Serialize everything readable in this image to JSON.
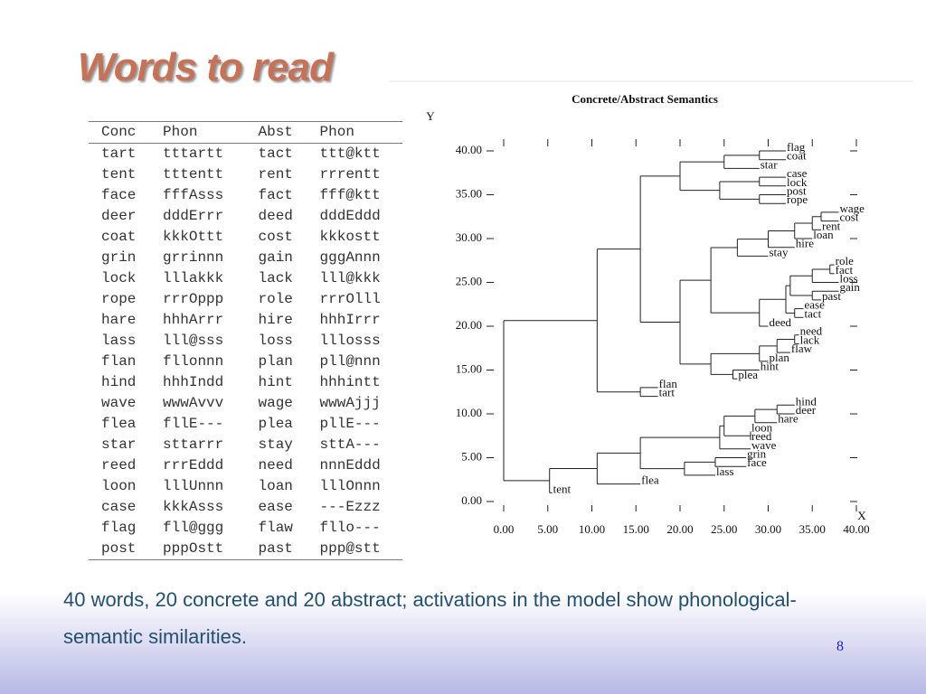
{
  "slide": {
    "title": "Words to read",
    "table": {
      "header": [
        "Conc",
        "Phon",
        "Abst",
        "Phon"
      ],
      "rows": [
        [
          "tart",
          "tttartt",
          "tact",
          "ttt@ktt"
        ],
        [
          "tent",
          "tttentt",
          "rent",
          "rrrentt"
        ],
        [
          "face",
          "fffAsss",
          "fact",
          "fff@ktt"
        ],
        [
          "deer",
          "dddErrr",
          "deed",
          "dddEddd"
        ],
        [
          "coat",
          "kkkOttt",
          "cost",
          "kkkostt"
        ],
        [
          "grin",
          "grrinnn",
          "gain",
          "gggAnnn"
        ],
        [
          "lock",
          "lllakkk",
          "lack",
          "lll@kkk"
        ],
        [
          "rope",
          "rrrOppp",
          "role",
          "rrrOlll"
        ],
        [
          "hare",
          "hhhArrr",
          "hire",
          "hhhIrrr"
        ],
        [
          "lass",
          "lll@sss",
          "loss",
          "lllosss"
        ],
        [
          "flan",
          "fllonnn",
          "plan",
          "pll@nnn"
        ],
        [
          "hind",
          "hhhIndd",
          "hint",
          "hhhintt"
        ],
        [
          "wave",
          "wwwAvvv",
          "wage",
          "wwwAjjj"
        ],
        [
          "flea",
          "fllE---",
          "plea",
          "pllE---"
        ],
        [
          "star",
          "sttarrr",
          "stay",
          "sttA---"
        ],
        [
          "reed",
          "rrrEddd",
          "need",
          "nnnEddd"
        ],
        [
          "loon",
          "lllUnnn",
          "loan",
          "lllOnnn"
        ],
        [
          "case",
          "kkkAsss",
          "ease",
          "---Ezzz"
        ],
        [
          "flag",
          "fll@ggg",
          "flaw",
          "fllo---"
        ],
        [
          "post",
          "pppOstt",
          "past",
          "ppp@stt"
        ]
      ]
    },
    "caption": "40 words, 20 concrete and 20 abstract; activations in the model show phonological-semantic similarities.",
    "page_number": 8
  },
  "chart_data": {
    "type": "dendrogram",
    "title": "Concrete/Abstract Semantics",
    "x_label": "X",
    "y_label": "Y",
    "xlim": [
      0,
      40
    ],
    "ylim": [
      0,
      40
    ],
    "xticks": [
      {
        "value": 0,
        "label": "0.00"
      },
      {
        "value": 5,
        "label": "5.00"
      },
      {
        "value": 10,
        "label": "10.00"
      },
      {
        "value": 15,
        "label": "15.00"
      },
      {
        "value": 20,
        "label": "20.00"
      },
      {
        "value": 25,
        "label": "25.00"
      },
      {
        "value": 30,
        "label": "30.00"
      },
      {
        "value": 35,
        "label": "35.00"
      },
      {
        "value": 40,
        "label": "40.00"
      }
    ],
    "yticks": [
      {
        "value": 0,
        "label": "0.00"
      },
      {
        "value": 5,
        "label": "5.00"
      },
      {
        "value": 10,
        "label": "10.00"
      },
      {
        "value": 15,
        "label": "15.00"
      },
      {
        "value": 20,
        "label": "20.00"
      },
      {
        "value": 25,
        "label": "25.00"
      },
      {
        "value": 30,
        "label": "30.00"
      },
      {
        "value": 35,
        "label": "35.00"
      },
      {
        "value": 40,
        "label": "40.00"
      }
    ],
    "tree": {
      "x": 0,
      "children": [
        {
          "x": 5.2,
          "children": [
            {
              "label": "tent",
              "x": 5.5,
              "y": 1
            },
            {
              "x": 10.6,
              "children": [
                {
                  "label": "flea",
                  "x": 15.5,
                  "y": 2
                },
                {
                  "x": 15.5,
                  "children": [
                    {
                      "x": 20.5,
                      "children": [
                        {
                          "label": "lass",
                          "x": 24,
                          "y": 3
                        },
                        {
                          "x": 24,
                          "children": [
                            {
                              "label": "face",
                              "x": 27.5,
                              "y": 4
                            },
                            {
                              "label": "grin",
                              "x": 27.5,
                              "y": 5
                            }
                          ]
                        }
                      ]
                    },
                    {
                      "x": 24.5,
                      "children": [
                        {
                          "label": "wave",
                          "x": 28,
                          "y": 6
                        },
                        {
                          "x": 25,
                          "children": [
                            {
                              "x": 28,
                              "children": [
                                {
                                  "label": "reed",
                                  "x": 28,
                                  "y": 7
                                },
                                {
                                  "label": "loon",
                                  "x": 28,
                                  "y": 8
                                }
                              ]
                            },
                            {
                              "x": 28.5,
                              "children": [
                                {
                                  "label": "hare",
                                  "x": 31,
                                  "y": 9
                                },
                                {
                                  "x": 31,
                                  "children": [
                                    {
                                      "label": "deer",
                                      "x": 33,
                                      "y": 10
                                    },
                                    {
                                      "label": "hind",
                                      "x": 33,
                                      "y": 11
                                    }
                                  ]
                                }
                              ]
                            }
                          ]
                        }
                      ]
                    }
                  ]
                }
              ]
            }
          ]
        },
        {
          "x": 10.6,
          "children": [
            {
              "x": 15.5,
              "children": [
                {
                  "label": "tart",
                  "x": 17.5,
                  "y": 12
                },
                {
                  "label": "flan",
                  "x": 17.5,
                  "y": 13
                }
              ]
            },
            {
              "x": 15.5,
              "children": [
                {
                  "x": 20,
                  "children": [
                    {
                      "x": 23.5,
                      "children": [
                        {
                          "x": 26,
                          "children": [
                            {
                              "label": "plea",
                              "x": 26.5,
                              "y": 14
                            },
                            {
                              "label": "hint",
                              "x": 29,
                              "y": 15
                            }
                          ]
                        },
                        {
                          "x": 29,
                          "children": [
                            {
                              "label": "plan",
                              "x": 30,
                              "y": 16
                            },
                            {
                              "x": 31,
                              "children": [
                                {
                                  "label": "flaw",
                                  "x": 32.5,
                                  "y": 17
                                },
                                {
                                  "x": 33,
                                  "children": [
                                    {
                                      "label": "lack",
                                      "x": 33.5,
                                      "y": 18
                                    },
                                    {
                                      "label": "need",
                                      "x": 33.5,
                                      "y": 19
                                    }
                                  ]
                                }
                              ]
                            }
                          ]
                        }
                      ]
                    },
                    {
                      "x": 23.5,
                      "children": [
                        {
                          "x": 29,
                          "children": [
                            {
                              "label": "deed",
                              "x": 30,
                              "y": 20
                            },
                            {
                              "x": 32,
                              "children": [
                                {
                                  "x": 33,
                                  "children": [
                                    {
                                      "label": "tact",
                                      "x": 34,
                                      "y": 21
                                    },
                                    {
                                      "label": "ease",
                                      "x": 34,
                                      "y": 22
                                    }
                                  ]
                                },
                                {
                                  "x": 32.5,
                                  "children": [
                                    {
                                      "x": 35,
                                      "children": [
                                        {
                                          "label": "past",
                                          "x": 36,
                                          "y": 23
                                        },
                                        {
                                          "label": "gain",
                                          "x": 38,
                                          "y": 24
                                        }
                                      ]
                                    },
                                    {
                                      "x": 35,
                                      "children": [
                                        {
                                          "label": "loss",
                                          "x": 38,
                                          "y": 25
                                        },
                                        {
                                          "x": 37,
                                          "children": [
                                            {
                                              "label": "fact",
                                              "x": 37.5,
                                              "y": 26
                                            },
                                            {
                                              "label": "role",
                                              "x": 37.5,
                                              "y": 27
                                            }
                                          ]
                                        }
                                      ]
                                    }
                                  ]
                                }
                              ]
                            }
                          ]
                        },
                        {
                          "x": 26.5,
                          "children": [
                            {
                              "label": "stay",
                              "x": 30,
                              "y": 28
                            },
                            {
                              "x": 30,
                              "children": [
                                {
                                  "label": "hire",
                                  "x": 33,
                                  "y": 29
                                },
                                {
                                  "x": 33,
                                  "children": [
                                    {
                                      "label": "loan",
                                      "x": 35,
                                      "y": 30
                                    },
                                    {
                                      "x": 35,
                                      "children": [
                                        {
                                          "label": "rent",
                                          "x": 36,
                                          "y": 31
                                        },
                                        {
                                          "x": 36,
                                          "children": [
                                            {
                                              "label": "cost",
                                              "x": 38,
                                              "y": 32
                                            },
                                            {
                                              "label": "wage",
                                              "x": 38,
                                              "y": 33
                                            }
                                          ]
                                        }
                                      ]
                                    }
                                  ]
                                }
                              ]
                            }
                          ]
                        }
                      ]
                    }
                  ]
                },
                {
                  "x": 20,
                  "children": [
                    {
                      "x": 24.5,
                      "children": [
                        {
                          "x": 29,
                          "children": [
                            {
                              "label": "rope",
                              "x": 32,
                              "y": 34
                            },
                            {
                              "label": "post",
                              "x": 32,
                              "y": 35
                            }
                          ]
                        },
                        {
                          "x": 29,
                          "children": [
                            {
                              "label": "lock",
                              "x": 32,
                              "y": 36
                            },
                            {
                              "label": "case",
                              "x": 32,
                              "y": 37
                            }
                          ]
                        }
                      ]
                    },
                    {
                      "x": 25,
                      "children": [
                        {
                          "label": "star",
                          "x": 29,
                          "y": 38
                        },
                        {
                          "x": 29,
                          "children": [
                            {
                              "label": "coat",
                              "x": 32,
                              "y": 39
                            },
                            {
                              "label": "flag",
                              "x": 32,
                              "y": 40
                            }
                          ]
                        }
                      ]
                    }
                  ]
                }
              ]
            }
          ]
        }
      ]
    }
  }
}
